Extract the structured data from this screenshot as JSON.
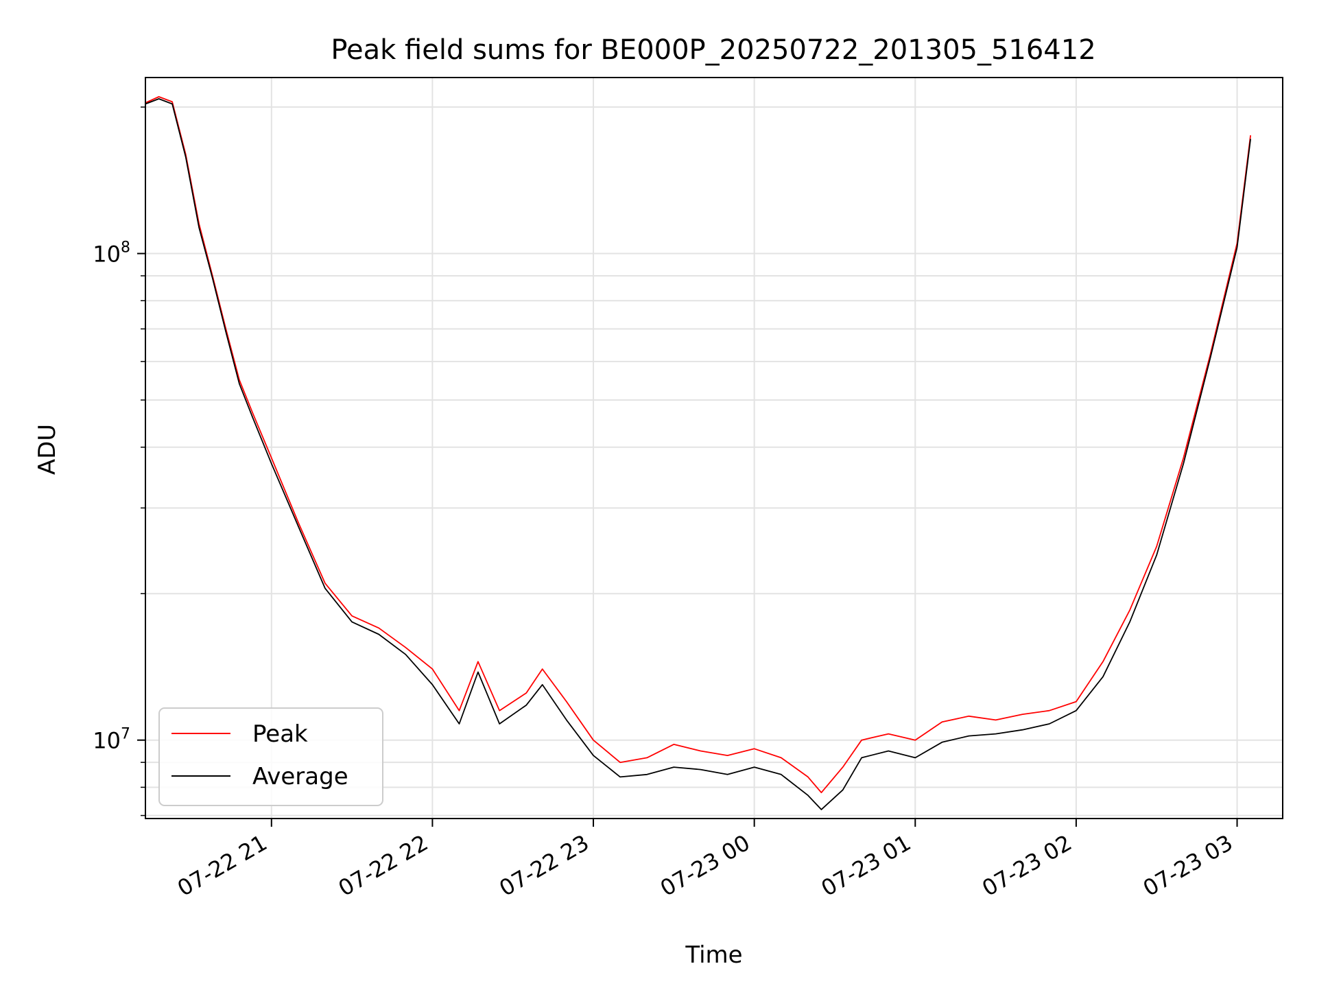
{
  "chart_data": {
    "type": "line",
    "title": "Peak field sums for BE000P_20250722_201305_516412",
    "xlabel": "Time",
    "ylabel": "ADU",
    "y_scale": "log",
    "grid": true,
    "legend_position": "lower-left",
    "xlim": [
      "2025-07-22 20:13",
      "2025-07-23 03:17"
    ],
    "ylim": [
      6900000,
      230000000
    ],
    "x_tick_labels": [
      "07-22 21",
      "07-22 22",
      "07-22 23",
      "07-23 00",
      "07-23 01",
      "07-23 02",
      "07-23 03"
    ],
    "x_ticks": [
      "2025-07-22 21:00",
      "2025-07-22 22:00",
      "2025-07-22 23:00",
      "2025-07-23 00:00",
      "2025-07-23 01:00",
      "2025-07-23 02:00",
      "2025-07-23 03:00"
    ],
    "y_tick_labels": [
      {
        "value": 10000000,
        "base": "10",
        "exp": "7"
      },
      {
        "value": 100000000,
        "base": "10",
        "exp": "8"
      }
    ],
    "series": [
      {
        "name": "Peak",
        "color": "#ff0000",
        "x": [
          "2025-07-22 20:13",
          "2025-07-22 20:18",
          "2025-07-22 20:23",
          "2025-07-22 20:28",
          "2025-07-22 20:33",
          "2025-07-22 20:38",
          "2025-07-22 20:43",
          "2025-07-22 20:48",
          "2025-07-22 20:53",
          "2025-07-22 21:00",
          "2025-07-22 21:10",
          "2025-07-22 21:20",
          "2025-07-22 21:30",
          "2025-07-22 21:40",
          "2025-07-22 21:50",
          "2025-07-22 22:00",
          "2025-07-22 22:10",
          "2025-07-22 22:17",
          "2025-07-22 22:25",
          "2025-07-22 22:35",
          "2025-07-22 22:41",
          "2025-07-22 22:50",
          "2025-07-22 23:00",
          "2025-07-22 23:10",
          "2025-07-22 23:20",
          "2025-07-22 23:30",
          "2025-07-22 23:40",
          "2025-07-22 23:50",
          "2025-07-23 00:00",
          "2025-07-23 00:10",
          "2025-07-23 00:20",
          "2025-07-23 00:25",
          "2025-07-23 00:33",
          "2025-07-23 00:40",
          "2025-07-23 00:50",
          "2025-07-23 01:00",
          "2025-07-23 01:10",
          "2025-07-23 01:20",
          "2025-07-23 01:30",
          "2025-07-23 01:40",
          "2025-07-23 01:50",
          "2025-07-23 02:00",
          "2025-07-23 02:10",
          "2025-07-23 02:20",
          "2025-07-23 02:30",
          "2025-07-23 02:40",
          "2025-07-23 02:50",
          "2025-07-23 03:00",
          "2025-07-23 03:05"
        ],
        "y": [
          204000000,
          210000000,
          205000000,
          160000000,
          115000000,
          90000000,
          70000000,
          55000000,
          47000000,
          38000000,
          28000000,
          21000000,
          18000000,
          17000000,
          15500000,
          14000000,
          11500000,
          14500000,
          11500000,
          12500000,
          14000000,
          12000000,
          10000000,
          9000000,
          9200000,
          9800000,
          9500000,
          9300000,
          9600000,
          9200000,
          8400000,
          7800000,
          8800000,
          10000000,
          10300000,
          10000000,
          10900000,
          11200000,
          11000000,
          11300000,
          11500000,
          12000000,
          14500000,
          18500000,
          25000000,
          38000000,
          62000000,
          105000000,
          175000000
        ]
      },
      {
        "name": "Average",
        "color": "#000000",
        "x": [
          "2025-07-22 20:13",
          "2025-07-22 20:18",
          "2025-07-22 20:23",
          "2025-07-22 20:28",
          "2025-07-22 20:33",
          "2025-07-22 20:38",
          "2025-07-22 20:43",
          "2025-07-22 20:48",
          "2025-07-22 20:53",
          "2025-07-22 21:00",
          "2025-07-22 21:10",
          "2025-07-22 21:20",
          "2025-07-22 21:30",
          "2025-07-22 21:40",
          "2025-07-22 21:50",
          "2025-07-22 22:00",
          "2025-07-22 22:10",
          "2025-07-22 22:17",
          "2025-07-22 22:25",
          "2025-07-22 22:35",
          "2025-07-22 22:41",
          "2025-07-22 22:50",
          "2025-07-22 23:00",
          "2025-07-22 23:10",
          "2025-07-22 23:20",
          "2025-07-22 23:30",
          "2025-07-22 23:40",
          "2025-07-22 23:50",
          "2025-07-23 00:00",
          "2025-07-23 00:10",
          "2025-07-23 00:20",
          "2025-07-23 00:25",
          "2025-07-23 00:33",
          "2025-07-23 00:40",
          "2025-07-23 00:50",
          "2025-07-23 01:00",
          "2025-07-23 01:10",
          "2025-07-23 01:20",
          "2025-07-23 01:30",
          "2025-07-23 01:40",
          "2025-07-23 01:50",
          "2025-07-23 02:00",
          "2025-07-23 02:10",
          "2025-07-23 02:20",
          "2025-07-23 02:30",
          "2025-07-23 02:40",
          "2025-07-23 02:50",
          "2025-07-23 03:00",
          "2025-07-23 03:05"
        ],
        "y": [
          203000000,
          208000000,
          203000000,
          158000000,
          113000000,
          89000000,
          69000000,
          54000000,
          46000000,
          37000000,
          27500000,
          20500000,
          17500000,
          16500000,
          15000000,
          13000000,
          10800000,
          13800000,
          10800000,
          11800000,
          13000000,
          11000000,
          9300000,
          8400000,
          8500000,
          8800000,
          8700000,
          8500000,
          8800000,
          8500000,
          7700000,
          7200000,
          7900000,
          9200000,
          9500000,
          9200000,
          9900000,
          10200000,
          10300000,
          10500000,
          10800000,
          11500000,
          13500000,
          17500000,
          24000000,
          37000000,
          61000000,
          103000000,
          172000000
        ]
      }
    ]
  }
}
